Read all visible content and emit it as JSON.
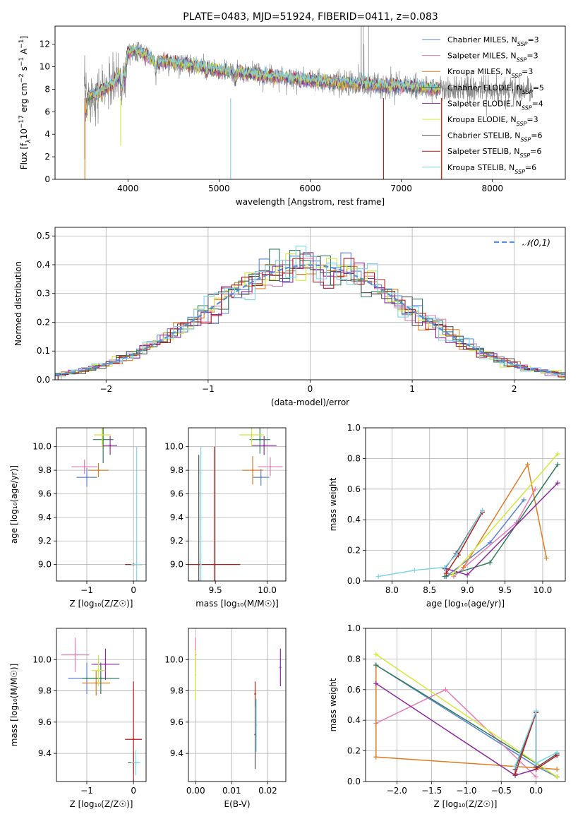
{
  "figure": {
    "title": "PLATE=0483, MJD=51924, FIBERID=0411, z=0.083"
  },
  "series": [
    {
      "name": "Chabrier MILES, N_SSP=3",
      "base": "Chabrier MILES, N",
      "sub": "SSP",
      "tail": "=3",
      "color": "#5b84d6"
    },
    {
      "name": "Salpeter MILES, N_SSP=3",
      "base": "Salpeter MILES, N",
      "sub": "SSP",
      "tail": "=3",
      "color": "#e87ab8"
    },
    {
      "name": "Kroupa MILES, N_SSP=3",
      "base": "Kroupa MILES, N",
      "sub": "SSP",
      "tail": "=3",
      "color": "#e07c22"
    },
    {
      "name": "Chabrier ELODIE, N_SSP=5",
      "base": "Chabrier ELODIE, N",
      "sub": "SSP",
      "tail": "=5",
      "color": "#2e7d5b"
    },
    {
      "name": "Salpeter ELODIE, N_SSP=4",
      "base": "Salpeter ELODIE, N",
      "sub": "SSP",
      "tail": "=4",
      "color": "#8e2aa3"
    },
    {
      "name": "Kroupa ELODIE, N_SSP=3",
      "base": "Kroupa ELODIE, N",
      "sub": "SSP",
      "tail": "=3",
      "color": "#d4e83a"
    },
    {
      "name": "Chabrier STELIB, N_SSP=6",
      "base": "Chabrier STELIB, N",
      "sub": "SSP",
      "tail": "=6",
      "color": "#555555"
    },
    {
      "name": "Salpeter STELIB, N_SSP=6",
      "base": "Salpeter STELIB, N",
      "sub": "SSP",
      "tail": "=6",
      "color": "#b71c1c"
    },
    {
      "name": "Kroupa STELIB, N_SSP=6",
      "base": "Kroupa STELIB, N",
      "sub": "SSP",
      "tail": "=6",
      "color": "#7fd4e8"
    }
  ],
  "chart_data": [
    {
      "id": "spectrum",
      "type": "line",
      "xlabel": "wavelength [Angstrom, rest frame]",
      "ylabel": "Flux [f_λ10^-17 erg cm^-2 s^-1 A^-1]",
      "ylabel_parts": [
        "Flux [f",
        "λ",
        "10",
        "−17",
        " erg cm",
        "−2",
        " s",
        "−1",
        " A",
        "−1",
        "]"
      ],
      "xlim": [
        3200,
        8800
      ],
      "ylim": [
        0,
        13.6
      ],
      "xticks": [
        4000,
        5000,
        6000,
        7000,
        8000
      ],
      "yticks": [
        0,
        2,
        4,
        6,
        8,
        10,
        12
      ],
      "grid": false,
      "legend": "top-right",
      "data_profile": [
        [
          3550,
          7.3
        ],
        [
          3700,
          7.8
        ],
        [
          3850,
          8.6
        ],
        [
          3950,
          9.6
        ],
        [
          4000,
          11.3
        ],
        [
          4100,
          11.5
        ],
        [
          4300,
          10.5
        ],
        [
          4500,
          10.4
        ],
        [
          4800,
          10.0
        ],
        [
          5000,
          9.6
        ],
        [
          5200,
          9.6
        ],
        [
          5500,
          9.2
        ],
        [
          5800,
          9.0
        ],
        [
          6100,
          8.7
        ],
        [
          6500,
          8.5
        ],
        [
          6800,
          8.3
        ],
        [
          7000,
          8.3
        ],
        [
          7400,
          8.0
        ],
        [
          7800,
          8.0
        ],
        [
          8400,
          7.9
        ]
      ],
      "model_range": [
        3520,
        7440
      ],
      "data_range": [
        3520,
        8450
      ]
    },
    {
      "id": "residuals",
      "type": "histogram",
      "xlabel": "(data-model)/error",
      "ylabel": "Normed distribution",
      "xlim": [
        -2.5,
        2.5
      ],
      "ylim": [
        0,
        0.53
      ],
      "xticks": [
        -2,
        -1,
        0,
        1,
        2
      ],
      "yticks": [
        0.0,
        0.1,
        0.2,
        0.3,
        0.4,
        0.5
      ],
      "grid": true,
      "legend": "top-right",
      "reference": "𝒩(0,1)",
      "bin_width": 0.1
    },
    {
      "id": "age_vs_Z",
      "type": "scatter",
      "xlabel": "Z [log₁₀(Z/Z☉)]",
      "ylabel": "age  [log₁₀(age/yr)]",
      "xlim": [
        -1.65,
        0.27
      ],
      "ylim": [
        8.86,
        10.16
      ],
      "xticks": [
        -1,
        0
      ],
      "yticks": [
        9.0,
        9.2,
        9.4,
        9.6,
        9.8,
        10.0
      ],
      "grid": true,
      "points": [
        {
          "s": 0,
          "x": -1.0,
          "y": 9.74,
          "xerr": 0.22,
          "yerr": 0.08
        },
        {
          "s": 1,
          "x": -1.05,
          "y": 9.83,
          "xerr": 0.28,
          "yerr": 0.06
        },
        {
          "s": 2,
          "x": -0.75,
          "y": 9.8,
          "xerr": 0.22,
          "yerr": 0.06
        },
        {
          "s": 3,
          "x": -0.65,
          "y": 10.06,
          "xerr": 0.22,
          "yerr": 0.2
        },
        {
          "s": 4,
          "x": -0.5,
          "y": 10.01,
          "xerr": 0.15,
          "yerr": 0.08
        },
        {
          "s": 5,
          "x": -0.67,
          "y": 10.1,
          "xerr": 0.18,
          "yerr": 0.1
        },
        {
          "s": 6,
          "x": 0.0,
          "y": 9.0,
          "xerr": 0.08,
          "yerr": 0.0
        },
        {
          "s": 7,
          "x": 0.0,
          "y": 9.0,
          "xerr": 0.18,
          "yerr": 0.0
        },
        {
          "s": 8,
          "x": 0.07,
          "y": 9.0,
          "xerr": 0.12,
          "yerr": 1.0
        }
      ]
    },
    {
      "id": "age_vs_mass",
      "type": "scatter",
      "xlabel": "mass [log₁₀(M/M☉)]",
      "ylabel": "",
      "xlim": [
        9.24,
        10.18
      ],
      "ylim": [
        8.86,
        10.16
      ],
      "xticks": [
        9.5,
        10.0
      ],
      "yticks": [
        9.0,
        9.2,
        9.4,
        9.6,
        9.8,
        10.0
      ],
      "grid": true,
      "points": [
        {
          "s": 0,
          "x": 9.94,
          "y": 9.74,
          "xerr": 0.08,
          "yerr": 0.07
        },
        {
          "s": 1,
          "x": 10.03,
          "y": 9.83,
          "xerr": 0.12,
          "yerr": 0.08
        },
        {
          "s": 2,
          "x": 9.86,
          "y": 9.8,
          "xerr": 0.1,
          "yerr": 0.12
        },
        {
          "s": 3,
          "x": 9.93,
          "y": 10.06,
          "xerr": 0.1,
          "yerr": 0.12
        },
        {
          "s": 4,
          "x": 9.97,
          "y": 10.01,
          "xerr": 0.12,
          "yerr": 0.08
        },
        {
          "s": 5,
          "x": 9.85,
          "y": 10.1,
          "xerr": 0.12,
          "yerr": 0.1
        },
        {
          "s": 6,
          "x": 9.34,
          "y": 9.0,
          "xerr": 0.0,
          "yerr": 0.93
        },
        {
          "s": 7,
          "x": 9.49,
          "y": 9.0,
          "xerr": 0.25,
          "yerr": 1.0
        },
        {
          "s": 8,
          "x": 9.36,
          "y": 9.0,
          "xerr": 0.0,
          "yerr": 1.0
        }
      ]
    },
    {
      "id": "massweight_vs_age",
      "type": "line",
      "xlabel": "age  [log₁₀(age/yr)]",
      "ylabel": "mass weight",
      "xlim": [
        7.65,
        10.3
      ],
      "ylim": [
        0.0,
        1.0
      ],
      "xticks": [
        8.0,
        8.5,
        9.0,
        9.5,
        10.0
      ],
      "yticks": [
        0.0,
        0.2,
        0.4,
        0.6,
        0.8,
        1.0
      ],
      "grid": true,
      "series_points": [
        {
          "s": 0,
          "x": [
            8.72,
            9.3,
            9.75
          ],
          "y": [
            0.03,
            0.25,
            0.53
          ]
        },
        {
          "s": 1,
          "x": [
            8.82,
            9.65,
            9.9
          ],
          "y": [
            0.03,
            0.38,
            0.6
          ]
        },
        {
          "s": 2,
          "x": [
            8.95,
            9.8,
            10.05
          ],
          "y": [
            0.09,
            0.76,
            0.15
          ]
        },
        {
          "s": 3,
          "x": [
            8.7,
            9.3,
            10.2
          ],
          "y": [
            0.03,
            0.12,
            0.76
          ]
        },
        {
          "s": 4,
          "x": [
            8.72,
            9.0,
            10.2
          ],
          "y": [
            0.08,
            0.04,
            0.64
          ]
        },
        {
          "s": 5,
          "x": [
            8.8,
            10.2
          ],
          "y": [
            0.04,
            0.83
          ]
        },
        {
          "s": 6,
          "x": [
            8.7,
            8.85,
            9.2
          ],
          "y": [
            0.08,
            0.18,
            0.46
          ]
        },
        {
          "s": 7,
          "x": [
            8.72,
            8.88,
            9.2
          ],
          "y": [
            0.05,
            0.17,
            0.45
          ]
        },
        {
          "s": 8,
          "x": [
            7.82,
            8.3,
            8.7,
            8.85,
            9.2
          ],
          "y": [
            0.03,
            0.07,
            0.09,
            0.17,
            0.46
          ]
        }
      ]
    },
    {
      "id": "mass_vs_Z",
      "type": "scatter",
      "xlabel": "Z [log₁₀(Z/Z☉)]",
      "ylabel": "mass [log₁₀(M/M☉)]",
      "xlim": [
        -1.65,
        0.27
      ],
      "ylim": [
        9.22,
        10.2
      ],
      "xticks": [
        -1,
        0
      ],
      "yticks": [
        9.4,
        9.6,
        9.8,
        10.0
      ],
      "grid": true,
      "points": [
        {
          "s": 0,
          "x": -1.0,
          "y": 9.88,
          "xerr": 0.4,
          "yerr": 0.1
        },
        {
          "s": 1,
          "x": -1.25,
          "y": 10.03,
          "xerr": 0.3,
          "yerr": 0.11
        },
        {
          "s": 2,
          "x": -0.8,
          "y": 9.85,
          "xerr": 0.3,
          "yerr": 0.08
        },
        {
          "s": 3,
          "x": -0.7,
          "y": 9.88,
          "xerr": 0.4,
          "yerr": 0.1
        },
        {
          "s": 4,
          "x": -0.6,
          "y": 9.97,
          "xerr": 0.3,
          "yerr": 0.1
        },
        {
          "s": 5,
          "x": -0.75,
          "y": 9.93,
          "xerr": 0.15,
          "yerr": 0.1
        },
        {
          "s": 6,
          "x": 0.0,
          "y": 9.34,
          "xerr": 0.12,
          "yerr": 0.07
        },
        {
          "s": 7,
          "x": 0.0,
          "y": 9.49,
          "xerr": 0.18,
          "yerr": 0.37
        },
        {
          "s": 8,
          "x": 0.05,
          "y": 9.34,
          "xerr": 0.1,
          "yerr": 0.08
        }
      ]
    },
    {
      "id": "mass_vs_ebv",
      "type": "scatter",
      "xlabel": "E(B-V)",
      "ylabel": "",
      "xlim": [
        -0.002,
        0.025
      ],
      "ylim": [
        9.22,
        10.2
      ],
      "xticks": [
        0.0,
        0.01,
        0.02
      ],
      "xticklabels": [
        "0.00",
        "0.01",
        "0.02"
      ],
      "yticks": [
        9.4,
        9.6,
        9.8,
        10.0
      ],
      "grid": true,
      "points": [
        {
          "s": 1,
          "x": 0.0,
          "y": 10.03,
          "xerr": 0,
          "yerr": 0.11
        },
        {
          "s": 5,
          "x": 0.0,
          "y": 9.9,
          "xerr": 0,
          "yerr": 0.16
        },
        {
          "s": 7,
          "x": 0.0165,
          "y": 9.78,
          "xerr": 0,
          "yerr": 0.08
        },
        {
          "s": 6,
          "x": 0.0165,
          "y": 9.52,
          "xerr": 0,
          "yerr": 0.22
        },
        {
          "s": 8,
          "x": 0.0168,
          "y": 9.58,
          "xerr": 0,
          "yerr": 0.17
        },
        {
          "s": 4,
          "x": 0.0235,
          "y": 9.95,
          "xerr": 0,
          "yerr": 0.12
        }
      ]
    },
    {
      "id": "massweight_vs_Z",
      "type": "line",
      "xlabel": "Z [log₁₀(Z/Z☉)]",
      "ylabel": "mass weight",
      "xlim": [
        -2.45,
        0.42
      ],
      "ylim": [
        0.0,
        1.0
      ],
      "xticks": [
        -2.0,
        -1.5,
        -1.0,
        -0.5,
        0.0
      ],
      "yticks": [
        0.0,
        0.2,
        0.4,
        0.6,
        0.8,
        1.0
      ],
      "grid": true,
      "series_points": [
        {
          "s": 0,
          "x": [
            -2.3,
            0.0,
            0.3
          ],
          "y": [
            0.76,
            0.1,
            0.03
          ]
        },
        {
          "s": 1,
          "x": [
            -2.3,
            -1.3,
            0.0
          ],
          "y": [
            0.38,
            0.6,
            0.03
          ]
        },
        {
          "s": 2,
          "x": [
            -2.3,
            -2.3,
            0.3
          ],
          "y": [
            0.76,
            0.16,
            0.08
          ]
        },
        {
          "s": 3,
          "x": [
            -2.3,
            0.0,
            0.3
          ],
          "y": [
            0.76,
            0.12,
            0.03
          ]
        },
        {
          "s": 4,
          "x": [
            -2.3,
            -0.3,
            0.0
          ],
          "y": [
            0.64,
            0.04,
            0.08
          ]
        },
        {
          "s": 5,
          "x": [
            -2.3,
            0.3
          ],
          "y": [
            0.83,
            0.03
          ]
        },
        {
          "s": 6,
          "x": [
            -0.3,
            0.0,
            0.0,
            0.3
          ],
          "y": [
            0.08,
            0.46,
            0.09,
            0.18
          ]
        },
        {
          "s": 7,
          "x": [
            -0.3,
            0.0,
            0.0,
            0.3
          ],
          "y": [
            0.05,
            0.45,
            0.08,
            0.17
          ]
        },
        {
          "s": 8,
          "x": [
            -0.3,
            0.0,
            0.0,
            0.3
          ],
          "y": [
            0.1,
            0.46,
            0.12,
            0.19
          ]
        }
      ]
    }
  ]
}
